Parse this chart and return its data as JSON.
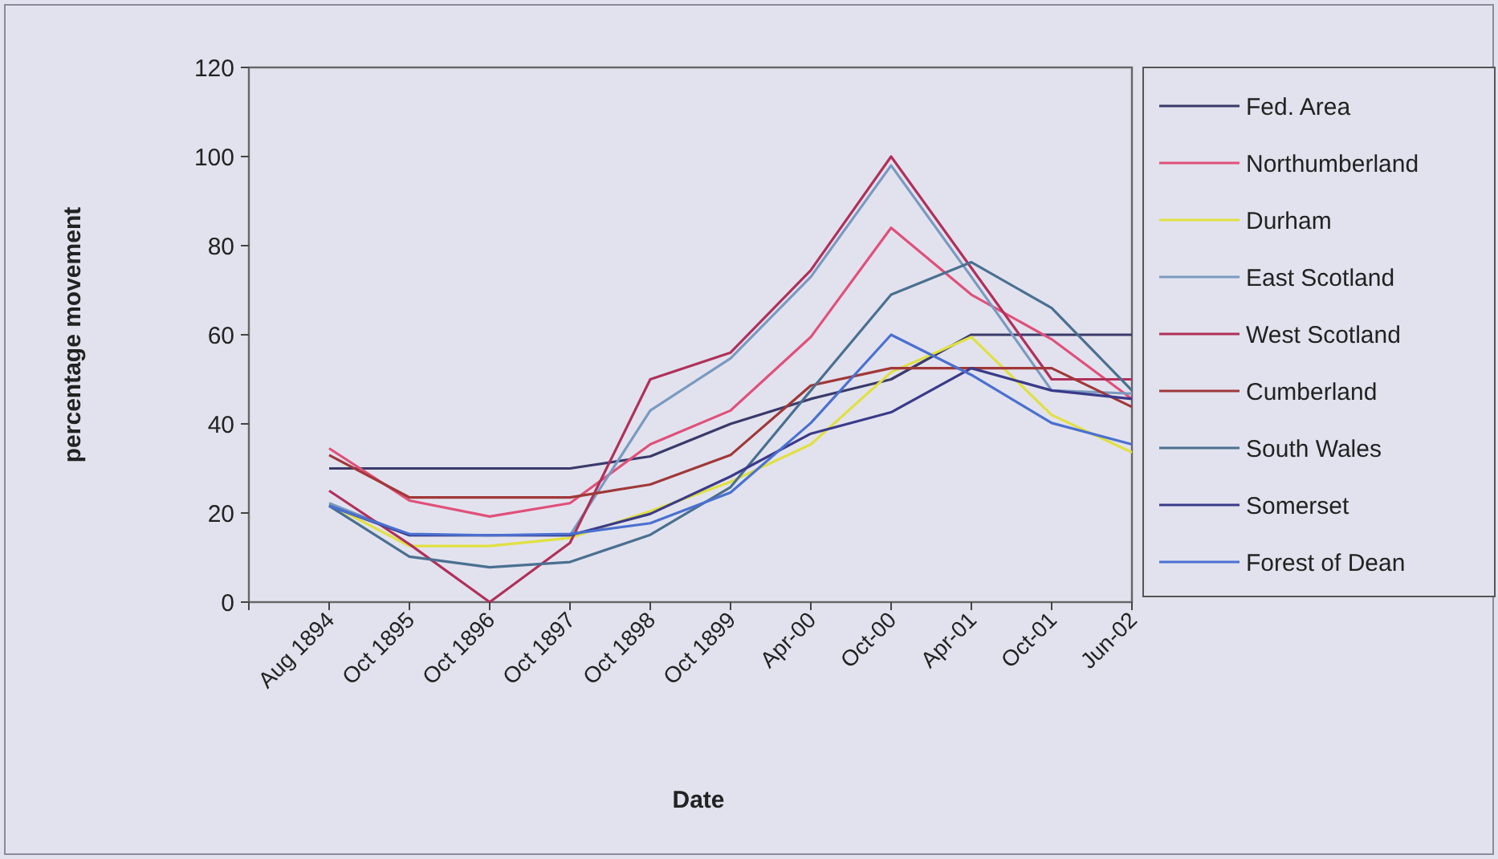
{
  "chart_data": {
    "type": "line",
    "xlabel": "Date",
    "ylabel": "percentage movement",
    "categories": [
      null,
      "Aug 1894",
      "Oct 1895",
      "Oct 1896",
      "Oct 1897",
      "Oct 1898",
      "Oct 1899",
      "Apr-00",
      "Oct-00",
      "Apr-01",
      "Oct-01",
      "Jun-02"
    ],
    "ylim": [
      0,
      120
    ],
    "yticks": [
      0,
      20,
      40,
      60,
      80,
      100,
      120
    ],
    "grid": false,
    "legend": "right",
    "marker": "none",
    "series": [
      {
        "name": "Fed. Area",
        "color": "#3a3a6a",
        "values": [
          null,
          30,
          30,
          30,
          30,
          32.7,
          40,
          45.6,
          50,
          60,
          60,
          60
        ]
      },
      {
        "name": "Northumberland",
        "color": "#e0507a",
        "values": [
          null,
          34.5,
          22.8,
          19.2,
          22.2,
          35.4,
          43,
          59.5,
          84,
          69,
          59,
          45.6
        ]
      },
      {
        "name": "Durham",
        "color": "#e0e040",
        "values": [
          null,
          22,
          12.6,
          12.6,
          14.4,
          20.4,
          27,
          35.4,
          51.6,
          59.5,
          42,
          33.6
        ]
      },
      {
        "name": "East Scotland",
        "color": "#7a9ac0",
        "values": [
          null,
          22.2,
          15,
          15,
          15,
          43,
          54.7,
          73,
          98,
          73,
          47.5,
          46.8
        ]
      },
      {
        "name": "West Scotland",
        "color": "#b0305a",
        "values": [
          null,
          25,
          13,
          0,
          13.3,
          50,
          56,
          74.5,
          100,
          75,
          50,
          50
        ]
      },
      {
        "name": "Cumberland",
        "color": "#a03838",
        "values": [
          null,
          33,
          23.5,
          23.5,
          23.5,
          26.4,
          33,
          48.6,
          52.5,
          52.5,
          52.5,
          43.8
        ]
      },
      {
        "name": "South Wales",
        "color": "#4a7090",
        "values": [
          null,
          21.6,
          10.2,
          7.8,
          9,
          15.1,
          25.8,
          47.5,
          69,
          76.3,
          66,
          47.5
        ]
      },
      {
        "name": "Somerset",
        "color": "#3a3a8a",
        "values": [
          null,
          21.6,
          15,
          15,
          15,
          19.8,
          28.2,
          37.8,
          42.6,
          52.5,
          47.5,
          45.6
        ]
      },
      {
        "name": "Forest of Dean",
        "color": "#4a70d0",
        "values": [
          null,
          21.6,
          15.3,
          15,
          15.3,
          17.7,
          24.6,
          40.2,
          60,
          51,
          40.2,
          35.4
        ]
      }
    ]
  }
}
